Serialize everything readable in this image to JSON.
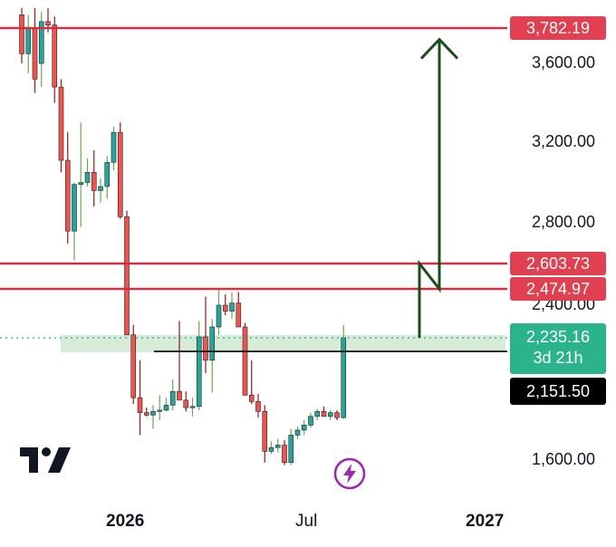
{
  "colors": {
    "up": "#26a69a",
    "down": "#ef5350",
    "level_line": "#d32f3f",
    "price_badge": "#2bb38b",
    "arrow": "#1b4d1f",
    "zone": "#c8e6c9",
    "pivot_badge": "#000000",
    "flash": "#9c27b0"
  },
  "chart_data": {
    "type": "candlestick",
    "y_axis": {
      "ticks": [
        "3,600.00",
        "3,200.00",
        "2,800.00",
        "2,400.00",
        "1,600.00"
      ],
      "tick_values": [
        3600,
        3200,
        2800,
        2400,
        1600
      ]
    },
    "x_axis": {
      "ticks": [
        "2026",
        "Jul",
        "2027"
      ]
    },
    "horizontal_levels": [
      {
        "value": 3782.19,
        "label": "3,782.19"
      },
      {
        "value": 2603.73,
        "label": "2,603.73"
      },
      {
        "value": 2474.97,
        "label": "2,474.97"
      }
    ],
    "current_price": {
      "value": 2235.16,
      "label": "2,235.16",
      "countdown": "3d 21h"
    },
    "pivot_level": {
      "value": 2151.5,
      "label": "2,151.50"
    },
    "projected_path": [
      2235.16,
      2603.73,
      2474.97,
      3700
    ],
    "candles": [
      [
        3860,
        3900,
        3600,
        3650
      ],
      [
        3650,
        3860,
        3550,
        3780
      ],
      [
        3780,
        3900,
        3450,
        3520
      ],
      [
        3600,
        3880,
        3480,
        3820
      ],
      [
        3820,
        3900,
        3760,
        3800
      ],
      [
        3800,
        3850,
        3400,
        3480
      ],
      [
        3480,
        3520,
        3050,
        3110
      ],
      [
        3110,
        3250,
        2700,
        2760
      ],
      [
        2760,
        3000,
        2620,
        2990
      ],
      [
        2990,
        3300,
        2780,
        3000
      ],
      [
        3000,
        3120,
        2980,
        3050
      ],
      [
        3050,
        3160,
        2880,
        2960
      ],
      [
        2960,
        3020,
        2900,
        2980
      ],
      [
        2980,
        3130,
        2920,
        3100
      ],
      [
        3100,
        3280,
        3060,
        3250
      ],
      [
        3250,
        3300,
        2820,
        2830
      ],
      [
        2830,
        2860,
        2250,
        2250
      ],
      [
        2250,
        2300,
        2050,
        2100
      ],
      [
        2100,
        2200,
        1800,
        1980
      ],
      [
        1980,
        2020,
        1950,
        1960
      ],
      [
        1960,
        2040,
        1850,
        1990
      ],
      [
        1990,
        2120,
        1920,
        2000
      ],
      [
        2000,
        2100,
        1990,
        2040
      ],
      [
        2040,
        2170,
        2000,
        2150
      ],
      [
        2150,
        2320,
        2100,
        2080
      ],
      [
        2080,
        2150,
        1990,
        2020
      ],
      [
        2020,
        2100,
        1950,
        2030
      ],
      [
        2030,
        2320,
        2000,
        2240
      ],
      [
        2240,
        2440,
        2180,
        2200
      ],
      [
        2200,
        2330,
        2140,
        2290
      ],
      [
        2290,
        2480,
        2250,
        2400
      ],
      [
        2400,
        2450,
        2350,
        2370
      ],
      [
        2370,
        2460,
        2330,
        2410
      ],
      [
        2410,
        2460,
        2290,
        2290
      ],
      [
        2290,
        2310,
        2130,
        2120
      ],
      [
        2120,
        2200,
        2050,
        2070
      ],
      [
        2070,
        2130,
        1940,
        1990
      ],
      [
        1990,
        2040,
        1580,
        1670
      ],
      [
        1670,
        1750,
        1650,
        1700
      ],
      [
        1700,
        1770,
        1660,
        1720
      ],
      [
        1720,
        1760,
        1560,
        1580
      ],
      [
        1580,
        1850,
        1560,
        1800
      ],
      [
        1800,
        1870,
        1770,
        1840
      ],
      [
        1840,
        1920,
        1800,
        1880
      ],
      [
        1880,
        1980,
        1860,
        1950
      ],
      [
        1950,
        2010,
        1920,
        1990
      ],
      [
        1990,
        2030,
        1950,
        1950
      ],
      [
        1950,
        2000,
        1920,
        1980
      ],
      [
        1980,
        2000,
        1920,
        1940
      ],
      [
        1940,
        2300,
        1930,
        2235.16
      ]
    ]
  },
  "logo": {
    "name": "TradingView"
  }
}
